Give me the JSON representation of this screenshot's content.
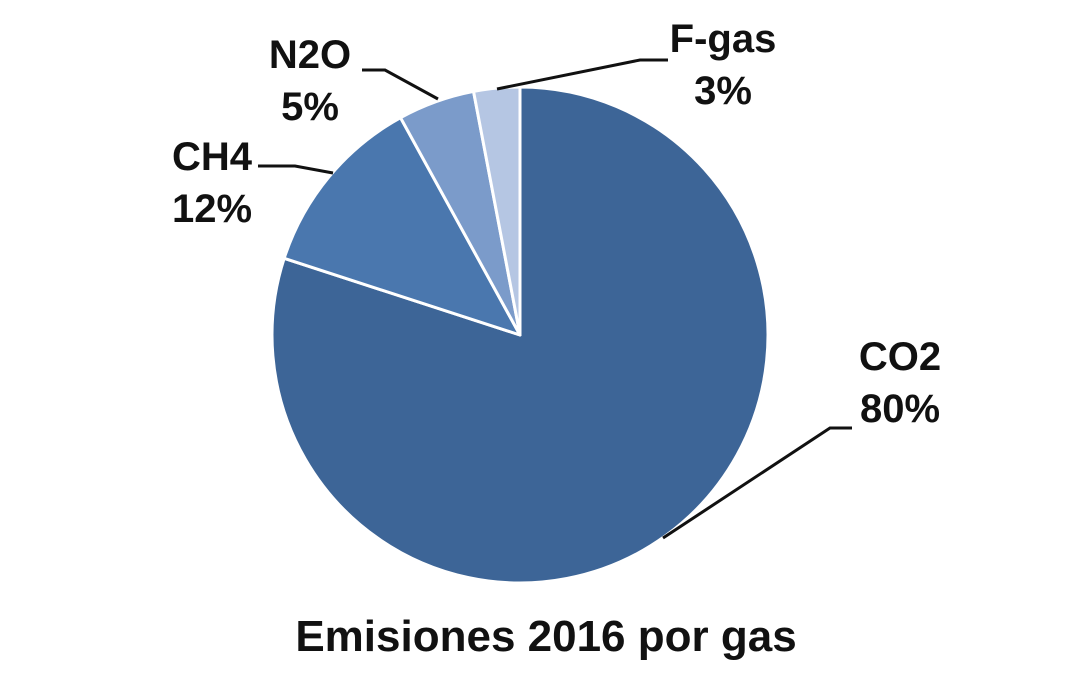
{
  "chart_data": {
    "type": "pie",
    "title": "Emisiones 2016 por gas",
    "slices": [
      {
        "name": "CO2",
        "value": 80,
        "label": "80%",
        "color": "#3D6597"
      },
      {
        "name": "CH4",
        "value": 12,
        "label": "12%",
        "color": "#4A77AE"
      },
      {
        "name": "N2O",
        "value": 5,
        "label": "5%",
        "color": "#7B9BCA"
      },
      {
        "name": "F-gas",
        "value": 3,
        "label": "3%",
        "color": "#B5C6E3"
      }
    ],
    "start_direction": "12 o'clock",
    "direction": "clockwise",
    "slice_border_color": "#ffffff",
    "leader_lines": true,
    "legend": "none"
  }
}
